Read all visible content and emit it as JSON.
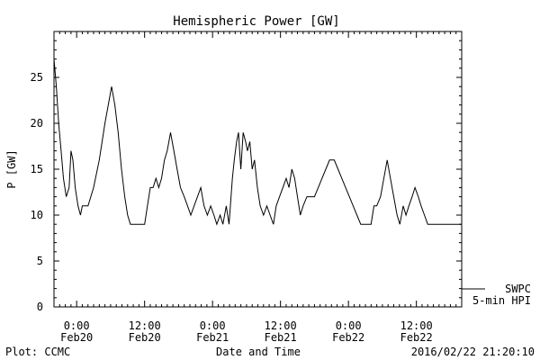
{
  "chart_data": {
    "type": "line",
    "title": "Hemispheric Power [GW]",
    "xlabel": "Date and Time",
    "ylabel": "P [GW]",
    "xlim": [
      "2016-02-19 20:00",
      "2016-02-22 20:00"
    ],
    "ylim": [
      0,
      30
    ],
    "y_ticks": [
      0,
      5,
      10,
      15,
      20,
      25
    ],
    "x_ticks": [
      {
        "x": "2016-02-20 00:00",
        "time": "0:00",
        "date": "Feb20"
      },
      {
        "x": "2016-02-20 12:00",
        "time": "12:00",
        "date": "Feb20"
      },
      {
        "x": "2016-02-21 00:00",
        "time": "0:00",
        "date": "Feb21"
      },
      {
        "x": "2016-02-21 12:00",
        "time": "12:00",
        "date": "Feb21"
      },
      {
        "x": "2016-02-22 00:00",
        "time": "0:00",
        "date": "Feb22"
      },
      {
        "x": "2016-02-22 12:00",
        "time": "12:00",
        "date": "Feb22"
      }
    ],
    "grid": false,
    "legend": {
      "placement": "bottom-right",
      "entries": [
        "SWPC",
        "5-min HPI"
      ]
    },
    "series": [
      {
        "points": [
          [
            "2016-02-19 20:00",
            27
          ],
          [
            "2016-02-19 20:25",
            24
          ],
          [
            "2016-02-19 20:50",
            20
          ],
          [
            "2016-02-19 21:15",
            17
          ],
          [
            "2016-02-19 21:40",
            14
          ],
          [
            "2016-02-19 22:10",
            12
          ],
          [
            "2016-02-19 22:40",
            13
          ],
          [
            "2016-02-19 23:00",
            17
          ],
          [
            "2016-02-19 23:20",
            16
          ],
          [
            "2016-02-19 23:45",
            13
          ],
          [
            "2016-02-20 00:15",
            11
          ],
          [
            "2016-02-20 00:40",
            10
          ],
          [
            "2016-02-20 01:00",
            11
          ],
          [
            "2016-02-20 02:00",
            11
          ],
          [
            "2016-02-20 03:00",
            13
          ],
          [
            "2016-02-20 04:00",
            16
          ],
          [
            "2016-02-20 05:00",
            20
          ],
          [
            "2016-02-20 05:35",
            22
          ],
          [
            "2016-02-20 06:10",
            24
          ],
          [
            "2016-02-20 06:45",
            22
          ],
          [
            "2016-02-20 07:20",
            19
          ],
          [
            "2016-02-20 07:55",
            15
          ],
          [
            "2016-02-20 08:30",
            12
          ],
          [
            "2016-02-20 09:00",
            10
          ],
          [
            "2016-02-20 09:30",
            9
          ],
          [
            "2016-02-20 12:00",
            9
          ],
          [
            "2016-02-20 12:30",
            11
          ],
          [
            "2016-02-20 13:00",
            13
          ],
          [
            "2016-02-20 13:30",
            13
          ],
          [
            "2016-02-20 14:00",
            14
          ],
          [
            "2016-02-20 14:30",
            13
          ],
          [
            "2016-02-20 15:00",
            14
          ],
          [
            "2016-02-20 15:30",
            16
          ],
          [
            "2016-02-20 16:00",
            17
          ],
          [
            "2016-02-20 16:35",
            19
          ],
          [
            "2016-02-20 17:10",
            17
          ],
          [
            "2016-02-20 17:45",
            15
          ],
          [
            "2016-02-20 18:20",
            13
          ],
          [
            "2016-02-20 19:00",
            12
          ],
          [
            "2016-02-20 19:35",
            11
          ],
          [
            "2016-02-20 20:10",
            10
          ],
          [
            "2016-02-20 20:45",
            11
          ],
          [
            "2016-02-20 21:20",
            12
          ],
          [
            "2016-02-20 21:55",
            13
          ],
          [
            "2016-02-20 22:30",
            11
          ],
          [
            "2016-02-20 23:05",
            10
          ],
          [
            "2016-02-20 23:40",
            11
          ],
          [
            "2016-02-21 00:15",
            10
          ],
          [
            "2016-02-21 00:45",
            9
          ],
          [
            "2016-02-21 01:20",
            10
          ],
          [
            "2016-02-21 01:50",
            9
          ],
          [
            "2016-02-21 02:25",
            11
          ],
          [
            "2016-02-21 02:55",
            9
          ],
          [
            "2016-02-21 03:30",
            14
          ],
          [
            "2016-02-21 03:50",
            16
          ],
          [
            "2016-02-21 04:15",
            18
          ],
          [
            "2016-02-21 04:35",
            19
          ],
          [
            "2016-02-21 05:00",
            15
          ],
          [
            "2016-02-21 05:25",
            19
          ],
          [
            "2016-02-21 05:50",
            18
          ],
          [
            "2016-02-21 06:10",
            17
          ],
          [
            "2016-02-21 06:35",
            18
          ],
          [
            "2016-02-21 07:00",
            15
          ],
          [
            "2016-02-21 07:25",
            16
          ],
          [
            "2016-02-21 07:55",
            13
          ],
          [
            "2016-02-21 08:25",
            11
          ],
          [
            "2016-02-21 09:00",
            10
          ],
          [
            "2016-02-21 09:35",
            11
          ],
          [
            "2016-02-21 10:10",
            10
          ],
          [
            "2016-02-21 10:45",
            9
          ],
          [
            "2016-02-21 11:15",
            11
          ],
          [
            "2016-02-21 11:50",
            12
          ],
          [
            "2016-02-21 12:25",
            13
          ],
          [
            "2016-02-21 13:00",
            14
          ],
          [
            "2016-02-21 13:30",
            13
          ],
          [
            "2016-02-21 14:00",
            15
          ],
          [
            "2016-02-21 14:30",
            14
          ],
          [
            "2016-02-21 15:00",
            12
          ],
          [
            "2016-02-21 15:30",
            10
          ],
          [
            "2016-02-21 16:00",
            11
          ],
          [
            "2016-02-21 16:40",
            12
          ],
          [
            "2016-02-21 18:00",
            12
          ],
          [
            "2016-02-21 18:40",
            13
          ],
          [
            "2016-02-21 19:20",
            14
          ],
          [
            "2016-02-21 20:00",
            15
          ],
          [
            "2016-02-21 20:40",
            16
          ],
          [
            "2016-02-21 21:30",
            16
          ],
          [
            "2016-02-21 22:10",
            15
          ],
          [
            "2016-02-21 22:50",
            14
          ],
          [
            "2016-02-21 23:30",
            13
          ],
          [
            "2016-02-22 00:10",
            12
          ],
          [
            "2016-02-22 00:50",
            11
          ],
          [
            "2016-02-22 01:30",
            10
          ],
          [
            "2016-02-22 02:10",
            9
          ],
          [
            "2016-02-22 04:00",
            9
          ],
          [
            "2016-02-22 04:30",
            11
          ],
          [
            "2016-02-22 05:00",
            11
          ],
          [
            "2016-02-22 05:40",
            12
          ],
          [
            "2016-02-22 06:15",
            14
          ],
          [
            "2016-02-22 06:50",
            16
          ],
          [
            "2016-02-22 07:25",
            14
          ],
          [
            "2016-02-22 08:00",
            12
          ],
          [
            "2016-02-22 08:35",
            10
          ],
          [
            "2016-02-22 09:05",
            9
          ],
          [
            "2016-02-22 09:40",
            11
          ],
          [
            "2016-02-22 10:10",
            10
          ],
          [
            "2016-02-22 10:40",
            11
          ],
          [
            "2016-02-22 11:15",
            12
          ],
          [
            "2016-02-22 11:45",
            13
          ],
          [
            "2016-02-22 12:20",
            12
          ],
          [
            "2016-02-22 12:50",
            11
          ],
          [
            "2016-02-22 13:25",
            10
          ],
          [
            "2016-02-22 14:00",
            9
          ],
          [
            "2016-02-22 20:00",
            9
          ]
        ]
      }
    ]
  },
  "footer": {
    "left": "Plot: CCMC",
    "timestamp": "2016/02/22 21:20:10"
  }
}
